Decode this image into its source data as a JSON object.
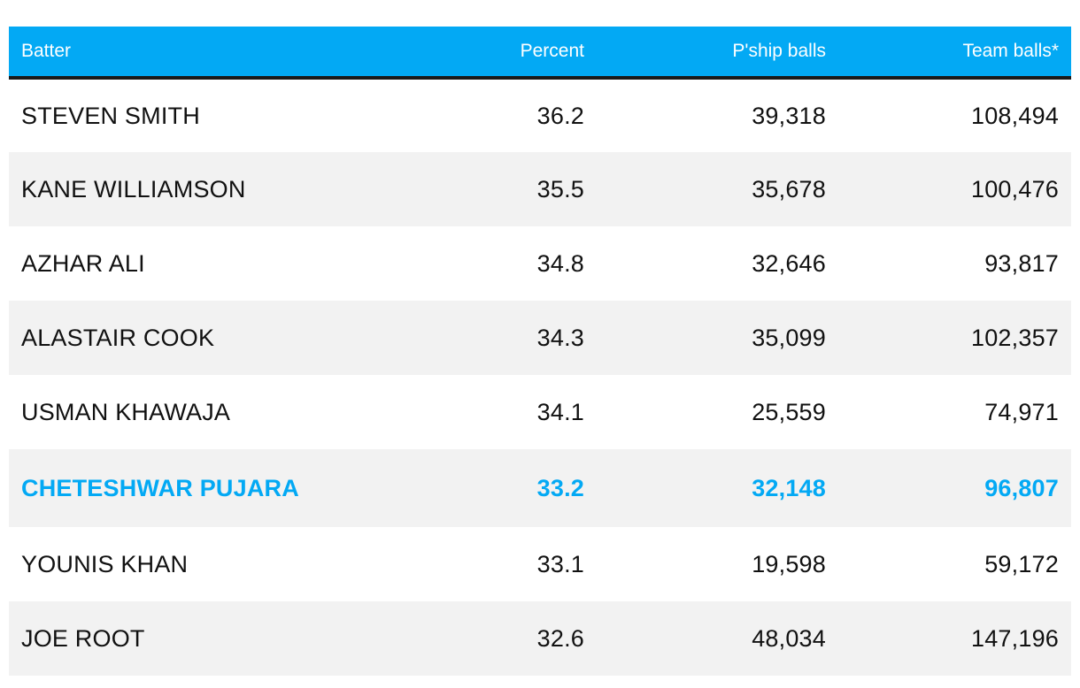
{
  "chart_data": {
    "type": "table",
    "columns": [
      "Batter",
      "Percent",
      "P'ship balls",
      "Team balls*"
    ],
    "rows": [
      {
        "batter": "STEVEN SMITH",
        "percent": "36.2",
        "pship_balls": "39,318",
        "team_balls": "108,494",
        "highlight": false
      },
      {
        "batter": "KANE WILLIAMSON",
        "percent": "35.5",
        "pship_balls": "35,678",
        "team_balls": "100,476",
        "highlight": false
      },
      {
        "batter": "AZHAR ALI",
        "percent": "34.8",
        "pship_balls": "32,646",
        "team_balls": "93,817",
        "highlight": false
      },
      {
        "batter": "ALASTAIR COOK",
        "percent": "34.3",
        "pship_balls": "35,099",
        "team_balls": "102,357",
        "highlight": false
      },
      {
        "batter": "USMAN KHAWAJA",
        "percent": "34.1",
        "pship_balls": "25,559",
        "team_balls": "74,971",
        "highlight": false
      },
      {
        "batter": "CHETESHWAR PUJARA",
        "percent": "33.2",
        "pship_balls": "32,148",
        "team_balls": "96,807",
        "highlight": true
      },
      {
        "batter": "YOUNIS KHAN",
        "percent": "33.1",
        "pship_balls": "19,598",
        "team_balls": "59,172",
        "highlight": false
      },
      {
        "batter": "JOE ROOT",
        "percent": "32.6",
        "pship_balls": "48,034",
        "team_balls": "147,196",
        "highlight": false
      }
    ]
  },
  "colors": {
    "header_background": "#03a9f4",
    "header_text": "#ffffff",
    "highlight_text": "#03a9f4",
    "stripe": "#f2f2f2"
  }
}
